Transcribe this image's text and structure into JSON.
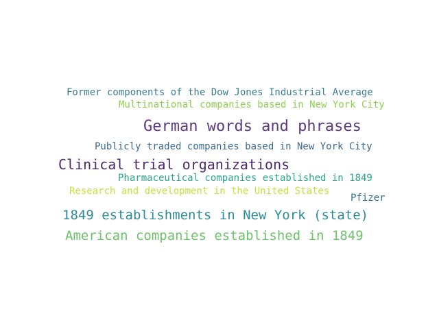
{
  "words": [
    {
      "text": "Former components of the Dow Jones Industrial Average",
      "color": "#3b7d95"
    },
    {
      "text": "Multinational companies based in New York City",
      "color": "#8fd14f"
    },
    {
      "text": "German words and phrases",
      "color": "#5b3a80"
    },
    {
      "text": "Publicly traded companies based in New York City",
      "color": "#3a6a93"
    },
    {
      "text": "Clinical trial organizations",
      "color": "#4a2b70"
    },
    {
      "text": "Pharmaceutical companies established in 1849",
      "color": "#2aa58a"
    },
    {
      "text": "Research and development in the United States",
      "color": "#c7e03a"
    },
    {
      "text": "Pfizer",
      "color": "#2f6f8f"
    },
    {
      "text": "1849 establishments in New York (state)",
      "color": "#2d8c9a"
    },
    {
      "text": "American companies established in 1849",
      "color": "#6cc36a"
    }
  ]
}
